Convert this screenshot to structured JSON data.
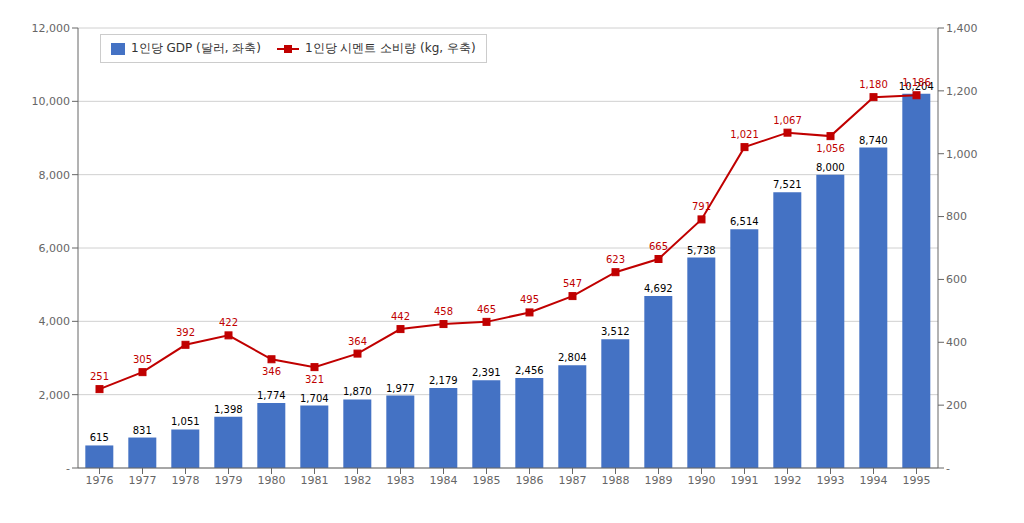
{
  "chart_data": {
    "type": "bar",
    "categories": [
      "1976",
      "1977",
      "1978",
      "1979",
      "1980",
      "1981",
      "1982",
      "1983",
      "1984",
      "1985",
      "1986",
      "1987",
      "1988",
      "1989",
      "1990",
      "1991",
      "1992",
      "1993",
      "1994",
      "1995"
    ],
    "series": [
      {
        "name": "1인당 GDP (달러, 좌축)",
        "type": "bar",
        "color": "#4472C4",
        "values": [
          615,
          831,
          1051,
          1398,
          1774,
          1704,
          1870,
          1977,
          2179,
          2391,
          2456,
          2804,
          3512,
          4692,
          5738,
          6514,
          7521,
          8000,
          8740,
          10204
        ],
        "value_labels": [
          "615",
          "831",
          "1,051",
          "1,398",
          "1,774",
          "1,704",
          "1,870",
          "1,977",
          "2,179",
          "2,391",
          "2,456",
          "2,804",
          "3,512",
          "4,692",
          "5,738",
          "6,514",
          "7,521",
          "8,000",
          "8,740",
          "10,204"
        ]
      },
      {
        "name": "1인당 시멘트 소비량 (kg, 우축)",
        "type": "line",
        "axis": "y2",
        "color": "#C00000",
        "marker": "square",
        "values": [
          251,
          305,
          392,
          422,
          346,
          321,
          364,
          442,
          458,
          465,
          495,
          547,
          623,
          665,
          791,
          1021,
          1067,
          1056,
          1180,
          1186
        ],
        "value_labels": [
          "251",
          "305",
          "392",
          "422",
          "346",
          "321",
          "364",
          "442",
          "458",
          "465",
          "495",
          "547",
          "623",
          "665",
          "791",
          "1,021",
          "1,067",
          "1,056",
          "1,180",
          "1,186"
        ]
      }
    ],
    "ylim": [
      0,
      12000
    ],
    "yticks": [
      {
        "value": 0,
        "label": "-"
      },
      {
        "value": 2000,
        "label": "2,000"
      },
      {
        "value": 4000,
        "label": "4,000"
      },
      {
        "value": 6000,
        "label": "6,000"
      },
      {
        "value": 8000,
        "label": "8,000"
      },
      {
        "value": 10000,
        "label": "10,000"
      },
      {
        "value": 12000,
        "label": "12,000"
      }
    ],
    "y2lim": [
      0,
      1400
    ],
    "y2ticks": [
      {
        "value": 0,
        "label": "-"
      },
      200,
      400,
      600,
      800,
      {
        "value": 1000,
        "label": "1,000"
      },
      {
        "value": 1200,
        "label": "1,200"
      },
      {
        "value": 1400,
        "label": "1,400"
      }
    ],
    "grid": true,
    "legend": "upper left",
    "data_labels": true
  }
}
